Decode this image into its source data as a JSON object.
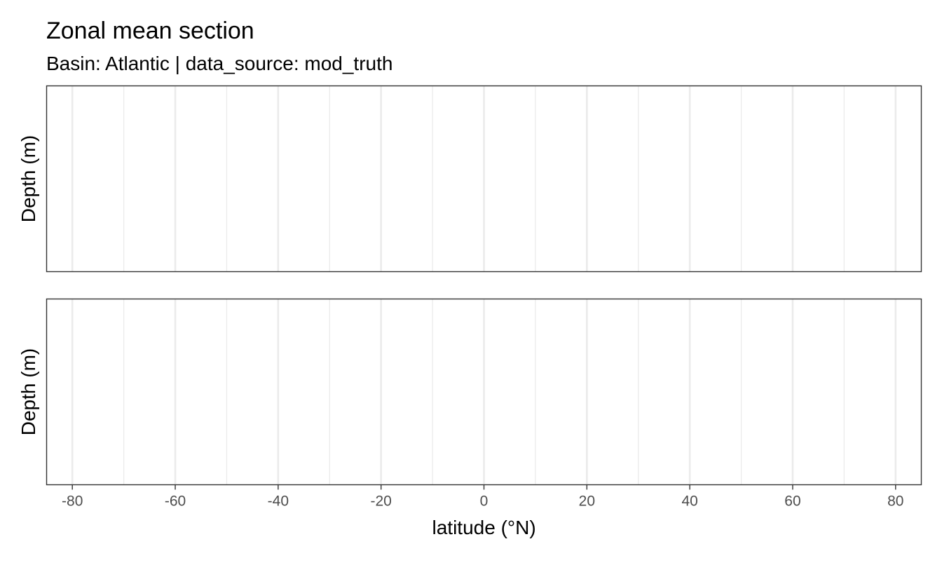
{
  "chart_data": {
    "type": "heatmap",
    "title": "Zonal mean section",
    "subtitle": "Basin: Atlantic | data_source: mod_truth",
    "xlabel": "latitude (°N)",
    "xlim": [
      -85,
      85
    ],
    "x_ticks": [
      -80,
      -60,
      -40,
      -20,
      0,
      20,
      40,
      60,
      80
    ],
    "x_tick_labels": [
      "-80",
      "-60",
      "-40",
      "-20",
      "0",
      "20",
      "40",
      "60",
      "80"
    ],
    "x_minor_ticks": [
      -70,
      -50,
      -30,
      -10,
      10,
      30,
      50,
      70
    ],
    "grid": true,
    "panels": [
      {
        "ylabel": "Depth (m)",
        "values": []
      },
      {
        "ylabel": "Depth (m)",
        "values": []
      }
    ]
  }
}
